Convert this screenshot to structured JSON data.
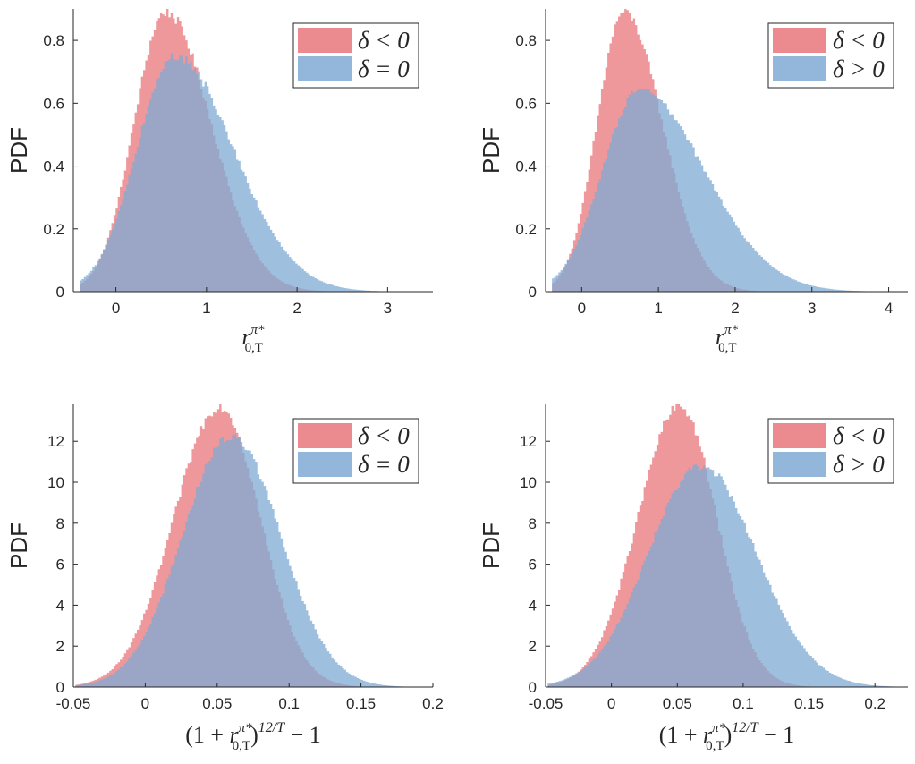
{
  "figure": {
    "name": "pdf-histogram-grid"
  },
  "chart_data": [
    {
      "type": "histogram",
      "panel_id": "top-left",
      "title": "",
      "xlabel": "r_{0,T}^{π*}",
      "xlabel_parts": {
        "base": "r",
        "sub": "0,T",
        "sup": "π*"
      },
      "ylabel": "PDF",
      "xlim": [
        -0.47,
        3.5
      ],
      "ylim": [
        0,
        0.9
      ],
      "xticks": [
        0,
        1,
        2,
        3
      ],
      "xtick_labels": [
        "0",
        "1",
        "2",
        "3"
      ],
      "yticks": [
        0,
        0.2,
        0.4,
        0.6,
        0.8
      ],
      "ytick_labels": [
        "0",
        "0.2",
        "0.4",
        "0.6",
        "0.8"
      ],
      "grid": false,
      "legend_position": "top-right",
      "series": [
        {
          "name": "δ < 0",
          "legend_label": "δ < 0",
          "color": "#E8767B",
          "shape": {
            "mode": 0.55,
            "peak": 0.89,
            "sd_left": 0.35,
            "sd_right": 0.5,
            "support_min": -0.4,
            "support_max": 3.0
          }
        },
        {
          "name": "δ = 0",
          "legend_label": "δ = 0",
          "color": "#7FAAD3",
          "shape": {
            "mode": 0.65,
            "peak": 0.75,
            "sd_left": 0.42,
            "sd_right": 0.65,
            "support_min": -0.4,
            "support_max": 3.5
          }
        }
      ]
    },
    {
      "type": "histogram",
      "panel_id": "top-right",
      "title": "",
      "xlabel": "r_{0,T}^{π*}",
      "xlabel_parts": {
        "base": "r",
        "sub": "0,T",
        "sup": "π*"
      },
      "ylabel": "PDF",
      "xlim": [
        -0.47,
        4.25
      ],
      "ylim": [
        0,
        0.9
      ],
      "xticks": [
        0,
        1,
        2,
        3,
        4
      ],
      "xtick_labels": [
        "0",
        "1",
        "2",
        "3",
        "4"
      ],
      "yticks": [
        0,
        0.2,
        0.4,
        0.6,
        0.8
      ],
      "ytick_labels": [
        "0",
        "0.2",
        "0.4",
        "0.6",
        "0.8"
      ],
      "grid": false,
      "legend_position": "top-right",
      "series": [
        {
          "name": "δ < 0",
          "legend_label": "δ < 0",
          "color": "#E8767B",
          "shape": {
            "mode": 0.55,
            "peak": 0.89,
            "sd_left": 0.35,
            "sd_right": 0.5,
            "support_min": -0.4,
            "support_max": 3.2
          }
        },
        {
          "name": "δ > 0",
          "legend_label": "δ > 0",
          "color": "#7FAAD3",
          "shape": {
            "mode": 0.75,
            "peak": 0.64,
            "sd_left": 0.48,
            "sd_right": 0.85,
            "support_min": -0.4,
            "support_max": 4.25
          }
        }
      ]
    },
    {
      "type": "histogram",
      "panel_id": "bottom-left",
      "title": "",
      "xlabel": "(1+r_{0,T}^{π*})^{12/T} − 1",
      "xlabel_parts": {
        "prefix": "(1 + ",
        "base": "r",
        "sub": "0,T",
        "sup": "π*",
        "close": ")",
        "exponent": "12/T",
        "suffix": " − 1"
      },
      "ylabel": "PDF",
      "xlim": [
        -0.05,
        0.2
      ],
      "ylim": [
        0,
        13.8
      ],
      "xticks": [
        -0.05,
        0,
        0.05,
        0.1,
        0.15,
        0.2
      ],
      "xtick_labels": [
        "-0.05",
        "0",
        "0.05",
        "0.1",
        "0.15",
        "0.2"
      ],
      "yticks": [
        0,
        2,
        4,
        6,
        8,
        10,
        12
      ],
      "ytick_labels": [
        "0",
        "2",
        "4",
        "6",
        "8",
        "10",
        "12"
      ],
      "grid": false,
      "legend_position": "top-right",
      "series": [
        {
          "name": "δ < 0",
          "legend_label": "δ < 0",
          "color": "#E8767B",
          "shape": {
            "mode": 0.052,
            "peak": 13.7,
            "sd_left": 0.032,
            "sd_right": 0.028,
            "support_min": -0.048,
            "support_max": 0.2
          }
        },
        {
          "name": "δ = 0",
          "legend_label": "δ = 0",
          "color": "#7FAAD3",
          "shape": {
            "mode": 0.06,
            "peak": 12.3,
            "sd_left": 0.034,
            "sd_right": 0.034,
            "support_min": -0.048,
            "support_max": 0.2
          }
        }
      ]
    },
    {
      "type": "histogram",
      "panel_id": "bottom-right",
      "title": "",
      "xlabel": "(1+r_{0,T}^{π*})^{12/T} − 1",
      "xlabel_parts": {
        "prefix": "(1 + ",
        "base": "r",
        "sub": "0,T",
        "sup": "π*",
        "close": ")",
        "exponent": "12/T",
        "suffix": " − 1"
      },
      "ylabel": "PDF",
      "xlim": [
        -0.05,
        0.225
      ],
      "ylim": [
        0,
        13.8
      ],
      "xticks": [
        -0.05,
        0,
        0.05,
        0.1,
        0.15,
        0.2
      ],
      "xtick_labels": [
        "-0.05",
        "0",
        "0.05",
        "0.1",
        "0.15",
        "0.2"
      ],
      "yticks": [
        0,
        2,
        4,
        6,
        8,
        10,
        12
      ],
      "ytick_labels": [
        "0",
        "2",
        "4",
        "6",
        "8",
        "10",
        "12"
      ],
      "grid": false,
      "legend_position": "top-right",
      "series": [
        {
          "name": "δ < 0",
          "legend_label": "δ < 0",
          "color": "#E8767B",
          "shape": {
            "mode": 0.052,
            "peak": 13.7,
            "sd_left": 0.032,
            "sd_right": 0.028,
            "support_min": -0.048,
            "support_max": 0.21
          }
        },
        {
          "name": "δ > 0",
          "legend_label": "δ > 0",
          "color": "#7FAAD3",
          "shape": {
            "mode": 0.068,
            "peak": 10.8,
            "sd_left": 0.04,
            "sd_right": 0.042,
            "support_min": -0.048,
            "support_max": 0.225
          }
        }
      ]
    }
  ]
}
